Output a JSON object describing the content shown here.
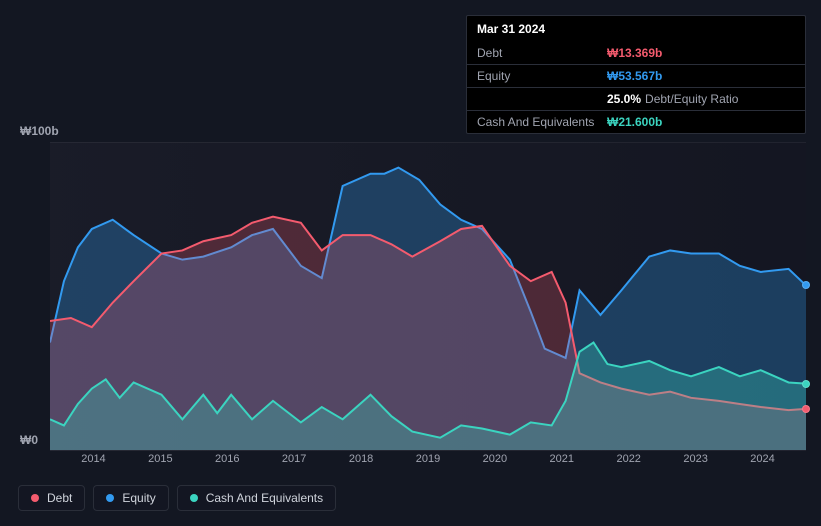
{
  "info": {
    "date": "Mar 31 2024",
    "rows": [
      {
        "label": "Debt",
        "value": "₩13.369b",
        "color": "#f45b6e"
      },
      {
        "label": "Equity",
        "value": "₩53.567b",
        "color": "#329af0"
      },
      {
        "label": "",
        "value": "25.0%",
        "extra": "Debt/Equity Ratio",
        "color": "#ffffff"
      },
      {
        "label": "Cash And Equivalents",
        "value": "₩21.600b",
        "color": "#3bd4c0"
      }
    ]
  },
  "chart": {
    "type": "area-line",
    "y_top_label": "₩100b",
    "y_bottom_label": "₩0",
    "ylim": [
      0,
      100
    ],
    "background": "#131722",
    "plot_bg": "rgba(28,30,44,0.5)",
    "grid_color": "rgba(255,255,255,0.05)",
    "x_ticks": [
      "2014",
      "2015",
      "2016",
      "2017",
      "2018",
      "2019",
      "2020",
      "2021",
      "2022",
      "2023",
      "2024"
    ],
    "x_domain": [
      2013.4,
      2024.25
    ],
    "series": {
      "debt": {
        "color": "#f45b6e",
        "fill_opacity": 0.25,
        "line_width": 2,
        "data": [
          [
            2013.4,
            42
          ],
          [
            2013.7,
            43
          ],
          [
            2014.0,
            40
          ],
          [
            2014.3,
            48
          ],
          [
            2014.6,
            55
          ],
          [
            2015.0,
            64
          ],
          [
            2015.3,
            65
          ],
          [
            2015.6,
            68
          ],
          [
            2016.0,
            70
          ],
          [
            2016.3,
            74
          ],
          [
            2016.6,
            76
          ],
          [
            2017.0,
            74
          ],
          [
            2017.3,
            65
          ],
          [
            2017.6,
            70
          ],
          [
            2018.0,
            70
          ],
          [
            2018.3,
            67
          ],
          [
            2018.6,
            63
          ],
          [
            2019.0,
            68
          ],
          [
            2019.3,
            72
          ],
          [
            2019.6,
            73
          ],
          [
            2020.0,
            60
          ],
          [
            2020.3,
            55
          ],
          [
            2020.6,
            58
          ],
          [
            2020.8,
            48
          ],
          [
            2021.0,
            25
          ],
          [
            2021.3,
            22
          ],
          [
            2021.6,
            20
          ],
          [
            2022.0,
            18
          ],
          [
            2022.3,
            19
          ],
          [
            2022.6,
            17
          ],
          [
            2023.0,
            16
          ],
          [
            2023.3,
            15
          ],
          [
            2023.6,
            14
          ],
          [
            2024.0,
            13
          ],
          [
            2024.25,
            13.4
          ]
        ]
      },
      "equity": {
        "color": "#329af0",
        "fill_opacity": 0.3,
        "line_width": 2,
        "data": [
          [
            2013.4,
            35
          ],
          [
            2013.6,
            55
          ],
          [
            2013.8,
            66
          ],
          [
            2014.0,
            72
          ],
          [
            2014.3,
            75
          ],
          [
            2014.6,
            70
          ],
          [
            2015.0,
            64
          ],
          [
            2015.3,
            62
          ],
          [
            2015.6,
            63
          ],
          [
            2016.0,
            66
          ],
          [
            2016.3,
            70
          ],
          [
            2016.6,
            72
          ],
          [
            2017.0,
            60
          ],
          [
            2017.3,
            56
          ],
          [
            2017.6,
            86
          ],
          [
            2018.0,
            90
          ],
          [
            2018.2,
            90
          ],
          [
            2018.4,
            92
          ],
          [
            2018.7,
            88
          ],
          [
            2019.0,
            80
          ],
          [
            2019.3,
            75
          ],
          [
            2019.6,
            72
          ],
          [
            2020.0,
            62
          ],
          [
            2020.3,
            45
          ],
          [
            2020.5,
            33
          ],
          [
            2020.8,
            30
          ],
          [
            2021.0,
            52
          ],
          [
            2021.3,
            44
          ],
          [
            2021.6,
            52
          ],
          [
            2022.0,
            63
          ],
          [
            2022.3,
            65
          ],
          [
            2022.6,
            64
          ],
          [
            2023.0,
            64
          ],
          [
            2023.3,
            60
          ],
          [
            2023.6,
            58
          ],
          [
            2024.0,
            59
          ],
          [
            2024.25,
            53.6
          ]
        ]
      },
      "cash": {
        "color": "#3bd4c0",
        "fill_opacity": 0.3,
        "line_width": 2,
        "data": [
          [
            2013.4,
            10
          ],
          [
            2013.6,
            8
          ],
          [
            2013.8,
            15
          ],
          [
            2014.0,
            20
          ],
          [
            2014.2,
            23
          ],
          [
            2014.4,
            17
          ],
          [
            2014.6,
            22
          ],
          [
            2015.0,
            18
          ],
          [
            2015.3,
            10
          ],
          [
            2015.6,
            18
          ],
          [
            2015.8,
            12
          ],
          [
            2016.0,
            18
          ],
          [
            2016.3,
            10
          ],
          [
            2016.6,
            16
          ],
          [
            2017.0,
            9
          ],
          [
            2017.3,
            14
          ],
          [
            2017.6,
            10
          ],
          [
            2018.0,
            18
          ],
          [
            2018.3,
            11
          ],
          [
            2018.6,
            6
          ],
          [
            2019.0,
            4
          ],
          [
            2019.3,
            8
          ],
          [
            2019.6,
            7
          ],
          [
            2020.0,
            5
          ],
          [
            2020.3,
            9
          ],
          [
            2020.6,
            8
          ],
          [
            2020.8,
            16
          ],
          [
            2021.0,
            32
          ],
          [
            2021.2,
            35
          ],
          [
            2021.4,
            28
          ],
          [
            2021.6,
            27
          ],
          [
            2022.0,
            29
          ],
          [
            2022.3,
            26
          ],
          [
            2022.6,
            24
          ],
          [
            2023.0,
            27
          ],
          [
            2023.3,
            24
          ],
          [
            2023.6,
            26
          ],
          [
            2024.0,
            22
          ],
          [
            2024.25,
            21.6
          ]
        ]
      }
    }
  },
  "legend": [
    {
      "label": "Debt",
      "color": "#f45b6e"
    },
    {
      "label": "Equity",
      "color": "#329af0"
    },
    {
      "label": "Cash And Equivalents",
      "color": "#3bd4c0"
    }
  ],
  "typography": {
    "label_fontsize": 12,
    "tick_fontsize": 11
  }
}
